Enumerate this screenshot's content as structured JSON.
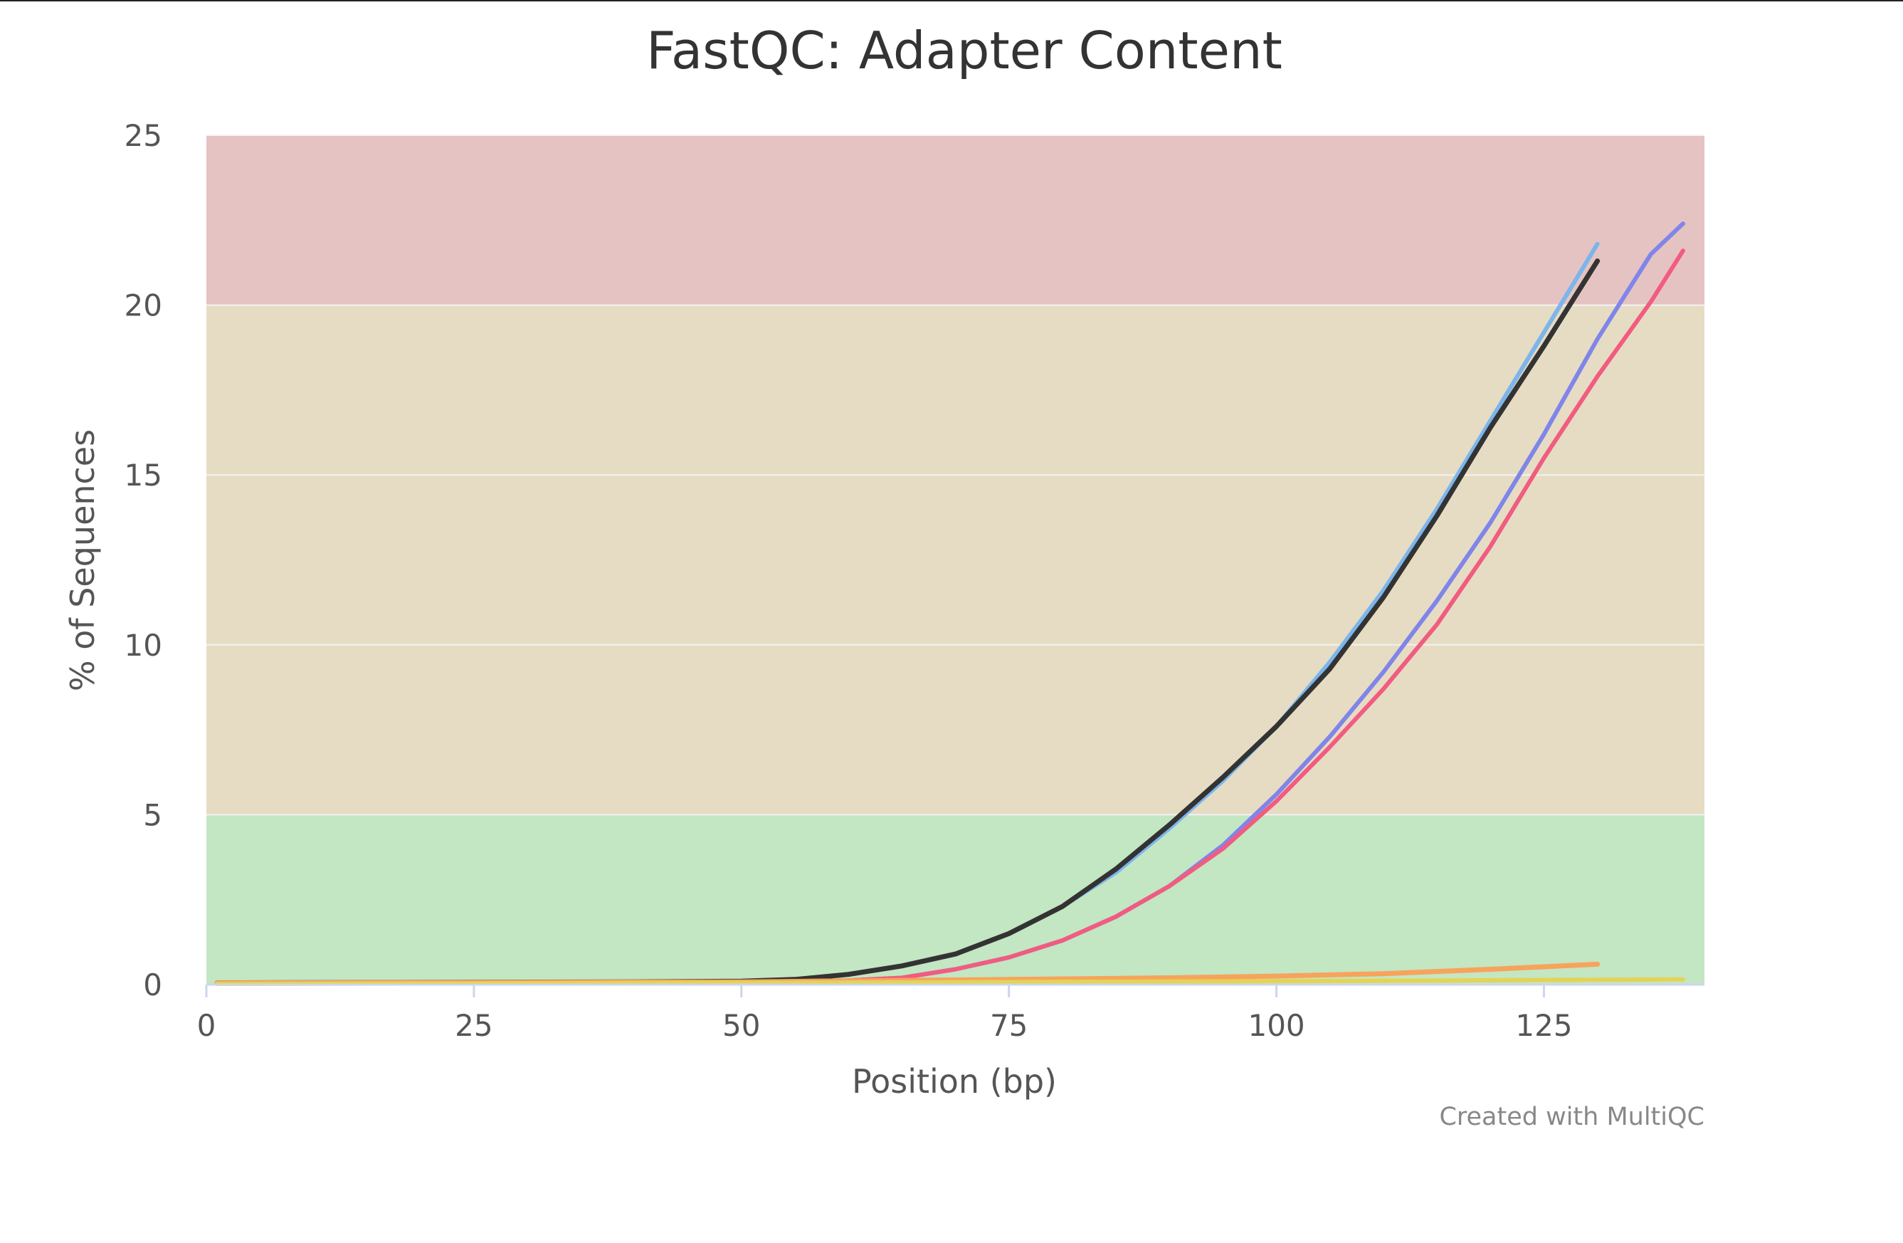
{
  "chart_data": {
    "type": "line",
    "title": "FastQC: Adapter Content",
    "xlabel": "Position (bp)",
    "ylabel": "% of Sequences",
    "xlim": [
      0,
      140
    ],
    "ylim": [
      0,
      25
    ],
    "x_ticks": [
      "0",
      "25",
      "50",
      "75",
      "100",
      "125"
    ],
    "y_ticks": [
      "0",
      "5",
      "10",
      "15",
      "20",
      "25"
    ],
    "grid": true,
    "legend": "none",
    "credits": "Created with MultiQC",
    "bands": [
      {
        "from": 0,
        "to": 5,
        "color": "#c3e6c3"
      },
      {
        "from": 5,
        "to": 20,
        "color": "#e6dcc3"
      },
      {
        "from": 20,
        "to": 25,
        "color": "#e6c3c3"
      }
    ],
    "series": [
      {
        "color": "#7cb5ec",
        "width": 6,
        "x": [
          1,
          40,
          50,
          55,
          60,
          65,
          70,
          75,
          80,
          85,
          90,
          95,
          100,
          105,
          110,
          115,
          120,
          125,
          130
        ],
        "y": [
          0.05,
          0.08,
          0.1,
          0.15,
          0.3,
          0.55,
          0.9,
          1.5,
          2.3,
          3.3,
          4.6,
          6.0,
          7.6,
          9.5,
          11.6,
          14.0,
          16.6,
          19.2,
          21.8
        ]
      },
      {
        "color": "#333333",
        "width": 7,
        "x": [
          1,
          40,
          50,
          55,
          60,
          65,
          70,
          75,
          80,
          85,
          90,
          95,
          100,
          105,
          110,
          115,
          120,
          125,
          130
        ],
        "y": [
          0.05,
          0.08,
          0.1,
          0.15,
          0.3,
          0.55,
          0.9,
          1.5,
          2.3,
          3.4,
          4.7,
          6.1,
          7.6,
          9.3,
          11.4,
          13.8,
          16.4,
          18.8,
          21.3
        ]
      },
      {
        "color": "#8085e9",
        "width": 6,
        "x": [
          1,
          50,
          60,
          65,
          70,
          75,
          80,
          85,
          90,
          95,
          100,
          105,
          110,
          115,
          120,
          125,
          130,
          135,
          138
        ],
        "y": [
          0.05,
          0.08,
          0.12,
          0.2,
          0.45,
          0.8,
          1.3,
          2.0,
          2.9,
          4.1,
          5.6,
          7.3,
          9.2,
          11.3,
          13.6,
          16.2,
          19.0,
          21.5,
          22.4
        ]
      },
      {
        "color": "#f15c80",
        "width": 6,
        "x": [
          1,
          50,
          60,
          65,
          70,
          75,
          80,
          85,
          90,
          95,
          100,
          105,
          110,
          115,
          120,
          125,
          130,
          135,
          138
        ],
        "y": [
          0.05,
          0.08,
          0.12,
          0.2,
          0.45,
          0.8,
          1.3,
          2.0,
          2.9,
          4.0,
          5.4,
          7.0,
          8.7,
          10.6,
          12.9,
          15.5,
          17.9,
          20.1,
          21.6
        ]
      },
      {
        "color": "#f7a35c",
        "width": 7,
        "x": [
          1,
          50,
          75,
          90,
          100,
          110,
          120,
          130
        ],
        "y": [
          0.05,
          0.08,
          0.15,
          0.2,
          0.25,
          0.32,
          0.45,
          0.6
        ]
      },
      {
        "color": "#e4d354",
        "width": 6,
        "x": [
          1,
          50,
          100,
          138
        ],
        "y": [
          0.02,
          0.05,
          0.1,
          0.15
        ]
      }
    ]
  }
}
